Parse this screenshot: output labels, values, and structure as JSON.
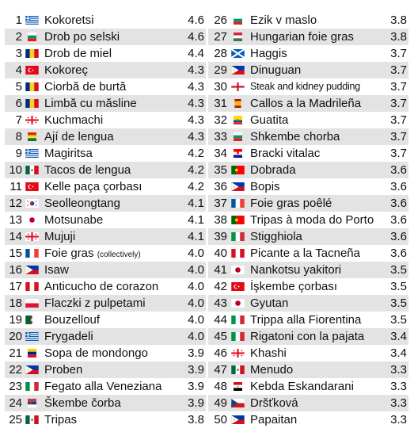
{
  "rows": [
    {
      "rank": "1",
      "flag": "greece",
      "name": "Kokoretsi",
      "rating": "4.6"
    },
    {
      "rank": "2",
      "flag": "bulgaria",
      "name": "Drob po selski",
      "rating": "4.6"
    },
    {
      "rank": "3",
      "flag": "romania",
      "name": "Drob de miel",
      "rating": "4.4"
    },
    {
      "rank": "4",
      "flag": "turkey",
      "name": "Kokoreç",
      "rating": "4.3"
    },
    {
      "rank": "5",
      "flag": "romania",
      "name": "Ciorbă de burtă",
      "rating": "4.3"
    },
    {
      "rank": "6",
      "flag": "romania",
      "name": "Limbă cu măsline",
      "rating": "4.3"
    },
    {
      "rank": "7",
      "flag": "georgia",
      "name": "Kuchmachi",
      "rating": "4.3"
    },
    {
      "rank": "8",
      "flag": "bolivia",
      "name": "Ají de lengua",
      "rating": "4.3"
    },
    {
      "rank": "9",
      "flag": "greece",
      "name": "Magiritsa",
      "rating": "4.2"
    },
    {
      "rank": "10",
      "flag": "mexico",
      "name": "Tacos de lengua",
      "rating": "4.2"
    },
    {
      "rank": "11",
      "flag": "turkey",
      "name": "Kelle paça çorbası",
      "rating": "4.2"
    },
    {
      "rank": "12",
      "flag": "south-korea",
      "name": "Seolleongtang",
      "rating": "4.1"
    },
    {
      "rank": "13",
      "flag": "japan",
      "name": "Motsunabe",
      "rating": "4.1"
    },
    {
      "rank": "14",
      "flag": "georgia",
      "name": "Mujuji",
      "rating": "4.1"
    },
    {
      "rank": "15",
      "flag": "france",
      "name": "Foie gras",
      "note": "(collectively)",
      "rating": "4.0"
    },
    {
      "rank": "16",
      "flag": "philippines",
      "name": "Isaw",
      "rating": "4.0"
    },
    {
      "rank": "17",
      "flag": "peru",
      "name": "Anticucho de corazon",
      "rating": "4.0"
    },
    {
      "rank": "18",
      "flag": "poland",
      "name": "Flaczki z pulpetami",
      "rating": "4.0"
    },
    {
      "rank": "19",
      "flag": "algeria",
      "name": "Bouzellouf",
      "rating": "4.0"
    },
    {
      "rank": "20",
      "flag": "greece",
      "name": "Frygadeli",
      "rating": "4.0"
    },
    {
      "rank": "21",
      "flag": "venezuela",
      "name": "Sopa de mondongo",
      "rating": "3.9"
    },
    {
      "rank": "22",
      "flag": "philippines",
      "name": "Proben",
      "rating": "3.9"
    },
    {
      "rank": "23",
      "flag": "italy",
      "name": "Fegato alla Veneziana",
      "rating": "3.9"
    },
    {
      "rank": "24",
      "flag": "serbia",
      "name": "Škembe čorba",
      "rating": "3.9"
    },
    {
      "rank": "25",
      "flag": "mexico",
      "name": "Tripas",
      "rating": "3.8"
    },
    {
      "rank": "26",
      "flag": "bulgaria",
      "name": "Ezik v maslo",
      "rating": "3.8"
    },
    {
      "rank": "27",
      "flag": "hungary",
      "name": "Hungarian foie gras",
      "rating": "3.8"
    },
    {
      "rank": "28",
      "flag": "scotland",
      "name": "Haggis",
      "rating": "3.7"
    },
    {
      "rank": "29",
      "flag": "philippines",
      "name": "Dinuguan",
      "rating": "3.7"
    },
    {
      "rank": "30",
      "flag": "england",
      "name": "Steak and kidney pudding",
      "rating": "3.7",
      "tight": true
    },
    {
      "rank": "31",
      "flag": "spain",
      "name": "Callos a la Madrileña",
      "rating": "3.7"
    },
    {
      "rank": "32",
      "flag": "ecuador",
      "name": "Guatita",
      "rating": "3.7"
    },
    {
      "rank": "33",
      "flag": "bulgaria",
      "name": "Shkembe chorba",
      "rating": "3.7"
    },
    {
      "rank": "34",
      "flag": "croatia",
      "name": "Bracki vitalac",
      "rating": "3.7"
    },
    {
      "rank": "35",
      "flag": "portugal",
      "name": "Dobrada",
      "rating": "3.6"
    },
    {
      "rank": "36",
      "flag": "philippines",
      "name": "Bopis",
      "rating": "3.6"
    },
    {
      "rank": "37",
      "flag": "france",
      "name": "Foie gras poêlé",
      "rating": "3.6"
    },
    {
      "rank": "38",
      "flag": "portugal",
      "name": "Tripas à moda do Porto",
      "rating": "3.6"
    },
    {
      "rank": "39",
      "flag": "italy",
      "name": "Stigghiola",
      "rating": "3.6"
    },
    {
      "rank": "40",
      "flag": "peru",
      "name": "Picante a la Tacneña",
      "rating": "3.6"
    },
    {
      "rank": "41",
      "flag": "japan",
      "name": "Nankotsu yakitori",
      "rating": "3.5"
    },
    {
      "rank": "42",
      "flag": "turkey",
      "name": "İşkembe çorbası",
      "rating": "3.5"
    },
    {
      "rank": "43",
      "flag": "japan",
      "name": "Gyutan",
      "rating": "3.5"
    },
    {
      "rank": "44",
      "flag": "italy",
      "name": "Trippa alla Fiorentina",
      "rating": "3.5"
    },
    {
      "rank": "45",
      "flag": "italy",
      "name": "Rigatoni con la pajata",
      "rating": "3.4"
    },
    {
      "rank": "46",
      "flag": "georgia",
      "name": "Khashi",
      "rating": "3.4"
    },
    {
      "rank": "47",
      "flag": "mexico",
      "name": "Menudo",
      "rating": "3.3"
    },
    {
      "rank": "48",
      "flag": "egypt",
      "name": "Kebda Eskandarani",
      "rating": "3.3"
    },
    {
      "rank": "49",
      "flag": "czechia",
      "name": "Dršťková",
      "rating": "3.3"
    },
    {
      "rank": "50",
      "flag": "philippines",
      "name": "Papaitan",
      "rating": "3.3"
    }
  ]
}
